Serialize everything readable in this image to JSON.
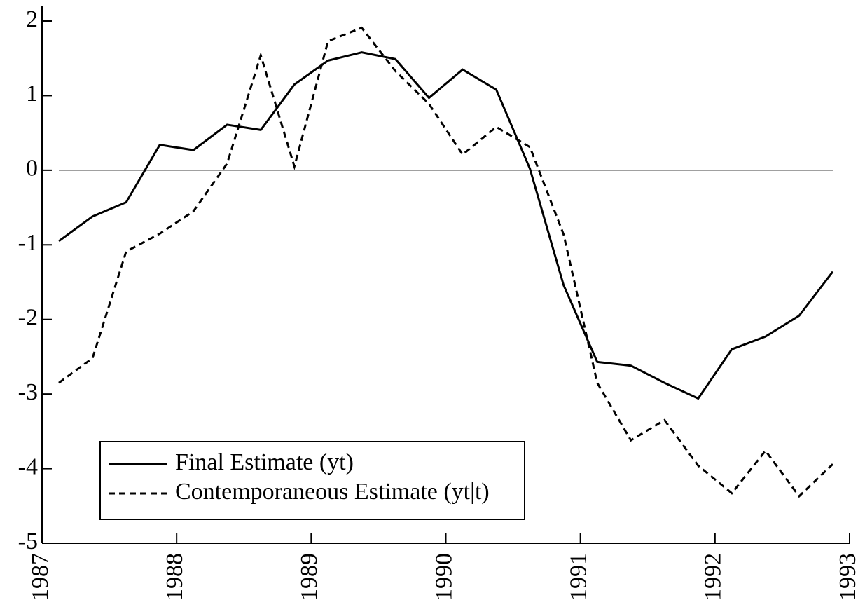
{
  "chart_data": {
    "type": "line",
    "x": [
      1987.125,
      1987.375,
      1987.625,
      1987.875,
      1988.125,
      1988.375,
      1988.625,
      1988.875,
      1989.125,
      1989.375,
      1989.625,
      1989.875,
      1990.125,
      1990.375,
      1990.625,
      1990.875,
      1991.125,
      1991.375,
      1991.625,
      1991.875,
      1992.125,
      1992.375,
      1992.625,
      1992.875
    ],
    "series": [
      {
        "name": "Final Estimate (yt)",
        "color": "#000000",
        "dash": "solid",
        "values": [
          -0.95,
          -0.62,
          -0.43,
          0.34,
          0.27,
          0.61,
          0.54,
          1.15,
          1.47,
          1.58,
          1.49,
          0.97,
          1.35,
          1.08,
          0.02,
          -1.54,
          -2.57,
          -2.62,
          -2.85,
          -3.06,
          -2.4,
          -2.23,
          -1.95,
          -1.36
        ]
      },
      {
        "name": "Contemporaneous Estimate (yt|t)",
        "color": "#000000",
        "dash": "dashed",
        "values": [
          -2.85,
          -2.52,
          -1.09,
          -0.85,
          -0.55,
          0.09,
          1.54,
          0.05,
          1.73,
          1.91,
          1.33,
          0.89,
          0.21,
          0.58,
          0.31,
          -0.86,
          -2.85,
          -3.62,
          -3.35,
          -3.96,
          -4.33,
          -3.76,
          -4.37,
          -3.94
        ]
      }
    ],
    "xlim": [
      1987,
      1993
    ],
    "xticks": [
      1987,
      1988,
      1989,
      1990,
      1991,
      1992,
      1993
    ],
    "ylim": [
      -5,
      2
    ],
    "yticks": [
      -5,
      -4,
      -3,
      -2,
      -1,
      0,
      1,
      2
    ],
    "zero_line": true,
    "legend": "lower left"
  }
}
